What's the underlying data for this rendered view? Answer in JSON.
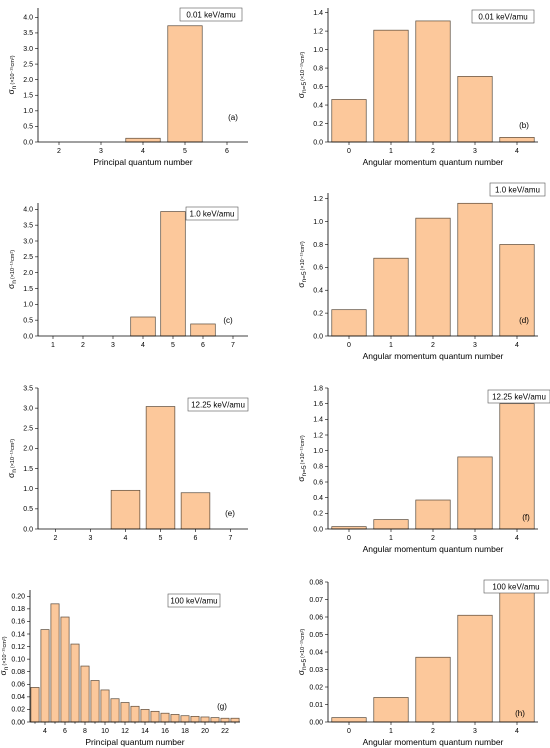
{
  "colors": {
    "bar_fill": "#fcc89b",
    "bar_stroke": "#5a4a3a"
  },
  "chart_data": [
    {
      "id": "a",
      "type": "bar",
      "panel_label": "(a)",
      "energy": "0.01 keV/amu",
      "xlabel": "Principal quantum number",
      "ylabel_main": "σ",
      "ylabel_sub": "n",
      "ylabel_unit": "(×10⁻¹⁵cm²)",
      "categories": [
        "2",
        "3",
        "4",
        "5",
        "6"
      ],
      "values": [
        0,
        0,
        0.12,
        3.73,
        0
      ],
      "xlim": [
        1.5,
        6.5
      ],
      "ylim": [
        0,
        4.3
      ],
      "yticks": [
        0,
        0.5,
        1.0,
        1.5,
        2.0,
        2.5,
        3.0,
        3.5,
        4.0
      ],
      "ytick_labels": [
        "0.0",
        "0.5",
        "1.0",
        "1.5",
        "2.0",
        "2.5",
        "3.0",
        "3.5",
        "4.0"
      ]
    },
    {
      "id": "b",
      "type": "bar",
      "panel_label": "(b)",
      "energy": "0.01 keV/amu",
      "xlabel": "Angular momentum quantum number",
      "ylabel_main": "σ",
      "ylabel_sub": "n=5",
      "ylabel_unit": "(×10⁻¹⁵cm²)",
      "categories": [
        "0",
        "1",
        "2",
        "3",
        "4"
      ],
      "values": [
        0.46,
        1.21,
        1.31,
        0.71,
        0.05
      ],
      "xlim": [
        -0.5,
        4.5
      ],
      "ylim": [
        0,
        1.45
      ],
      "yticks": [
        0,
        0.2,
        0.4,
        0.6,
        0.8,
        1.0,
        1.2,
        1.4
      ],
      "ytick_labels": [
        "0.0",
        "0.2",
        "0.4",
        "0.6",
        "0.8",
        "1.0",
        "1.2",
        "1.4"
      ]
    },
    {
      "id": "c",
      "type": "bar",
      "panel_label": "(c)",
      "energy": "1.0 keV/amu",
      "xlabel": "",
      "ylabel_main": "σ",
      "ylabel_sub": "n",
      "ylabel_unit": "(×10⁻¹⁵cm²)",
      "categories": [
        "1",
        "2",
        "3",
        "4",
        "5",
        "6",
        "7"
      ],
      "values": [
        0,
        0,
        0,
        0.6,
        3.93,
        0.38,
        0
      ],
      "xlim": [
        0.5,
        7.5
      ],
      "ylim": [
        0,
        4.2
      ],
      "yticks": [
        0,
        0.5,
        1.0,
        1.5,
        2.0,
        2.5,
        3.0,
        3.5,
        4.0
      ],
      "ytick_labels": [
        "0.0",
        "0.5",
        "1.0",
        "1.5",
        "2.0",
        "2.5",
        "3.0",
        "3.5",
        "4.0"
      ]
    },
    {
      "id": "d",
      "type": "bar",
      "panel_label": "(d)",
      "energy": "1.0 keV/amu",
      "xlabel": "Angular momentum quantum number",
      "ylabel_main": "σ",
      "ylabel_sub": "n=5",
      "ylabel_unit": "(×10⁻¹⁵cm²)",
      "categories": [
        "0",
        "1",
        "2",
        "3",
        "4"
      ],
      "values": [
        0.23,
        0.68,
        1.03,
        1.16,
        0.8
      ],
      "xlim": [
        -0.5,
        4.5
      ],
      "ylim": [
        0,
        1.25
      ],
      "yticks": [
        0,
        0.2,
        0.4,
        0.6,
        0.8,
        1.0,
        1.2
      ],
      "ytick_labels": [
        "0.0",
        "0.2",
        "0.4",
        "0.6",
        "0.8",
        "1.0",
        "1.2"
      ]
    },
    {
      "id": "e",
      "type": "bar",
      "panel_label": "(e)",
      "energy": "12.25 keV/amu",
      "xlabel": "",
      "ylabel_main": "σ",
      "ylabel_sub": "n",
      "ylabel_unit": "(×10⁻¹⁵cm²)",
      "categories": [
        "2",
        "3",
        "4",
        "5",
        "6",
        "7"
      ],
      "values": [
        0,
        0,
        0.96,
        3.04,
        0.9,
        0
      ],
      "xlim": [
        1.5,
        7.5
      ],
      "ylim": [
        0,
        3.5
      ],
      "yticks": [
        0,
        0.5,
        1.0,
        1.5,
        2.0,
        2.5,
        3.0,
        3.5
      ],
      "ytick_labels": [
        "0.0",
        "0.5",
        "1.0",
        "1.5",
        "2.0",
        "2.5",
        "3.0",
        "3.5"
      ]
    },
    {
      "id": "f",
      "type": "bar",
      "panel_label": "(f)",
      "energy": "12.25 keV/amu",
      "xlabel": "Angular momentum quantum number",
      "ylabel_main": "σ",
      "ylabel_sub": "n=5",
      "ylabel_unit": "(×10⁻¹⁵cm²)",
      "categories": [
        "0",
        "1",
        "2",
        "3",
        "4"
      ],
      "values": [
        0.03,
        0.12,
        0.37,
        0.92,
        1.6
      ],
      "xlim": [
        -0.5,
        4.5
      ],
      "ylim": [
        0,
        1.8
      ],
      "yticks": [
        0,
        0.2,
        0.4,
        0.6,
        0.8,
        1.0,
        1.2,
        1.4,
        1.6,
        1.8
      ],
      "ytick_labels": [
        "0.0",
        "0.2",
        "0.4",
        "0.6",
        "0.8",
        "1.0",
        "1.2",
        "1.4",
        "1.6",
        "1.8"
      ]
    },
    {
      "id": "g",
      "type": "bar",
      "panel_label": "(g)",
      "energy": "100 keV/amu",
      "xlabel": "Principal quantum number",
      "ylabel_main": "σ",
      "ylabel_sub": "n",
      "ylabel_unit": "(×10⁻¹⁵cm²)",
      "categories": [
        "3",
        "4",
        "5",
        "6",
        "7",
        "8",
        "9",
        "10",
        "11",
        "12",
        "13",
        "14",
        "15",
        "16",
        "17",
        "18",
        "19",
        "20",
        "21",
        "22",
        "23"
      ],
      "values": [
        0.055,
        0.147,
        0.188,
        0.167,
        0.124,
        0.089,
        0.066,
        0.051,
        0.037,
        0.031,
        0.025,
        0.02,
        0.017,
        0.014,
        0.012,
        0.01,
        0.009,
        0.008,
        0.007,
        0.006,
        0.006
      ],
      "xlim": [
        2.5,
        23.5
      ],
      "ylim": [
        0,
        0.21
      ],
      "xticks": [
        4,
        6,
        8,
        10,
        12,
        14,
        16,
        18,
        20,
        22
      ],
      "yticks": [
        0,
        0.02,
        0.04,
        0.06,
        0.08,
        0.1,
        0.12,
        0.14,
        0.16,
        0.18,
        0.2
      ],
      "ytick_labels": [
        "0.00",
        "0.02",
        "0.04",
        "0.06",
        "0.08",
        "0.10",
        "0.12",
        "0.14",
        "0.16",
        "0.18",
        "0.20"
      ]
    },
    {
      "id": "h",
      "type": "bar",
      "panel_label": "(h)",
      "energy": "100 keV/amu",
      "xlabel": "Angular momentum quantum number",
      "ylabel_main": "σ",
      "ylabel_sub": "n=5",
      "ylabel_unit": "(×10⁻¹⁵cm²)",
      "categories": [
        "0",
        "1",
        "2",
        "3",
        "4"
      ],
      "values": [
        0.0025,
        0.014,
        0.037,
        0.061,
        0.074
      ],
      "xlim": [
        -0.5,
        4.5
      ],
      "ylim": [
        0,
        0.08
      ],
      "yticks": [
        0,
        0.01,
        0.02,
        0.03,
        0.04,
        0.05,
        0.06,
        0.07,
        0.08
      ],
      "ytick_labels": [
        "0.00",
        "0.01",
        "0.02",
        "0.03",
        "0.04",
        "0.05",
        "0.06",
        "0.07",
        "0.08"
      ]
    }
  ]
}
